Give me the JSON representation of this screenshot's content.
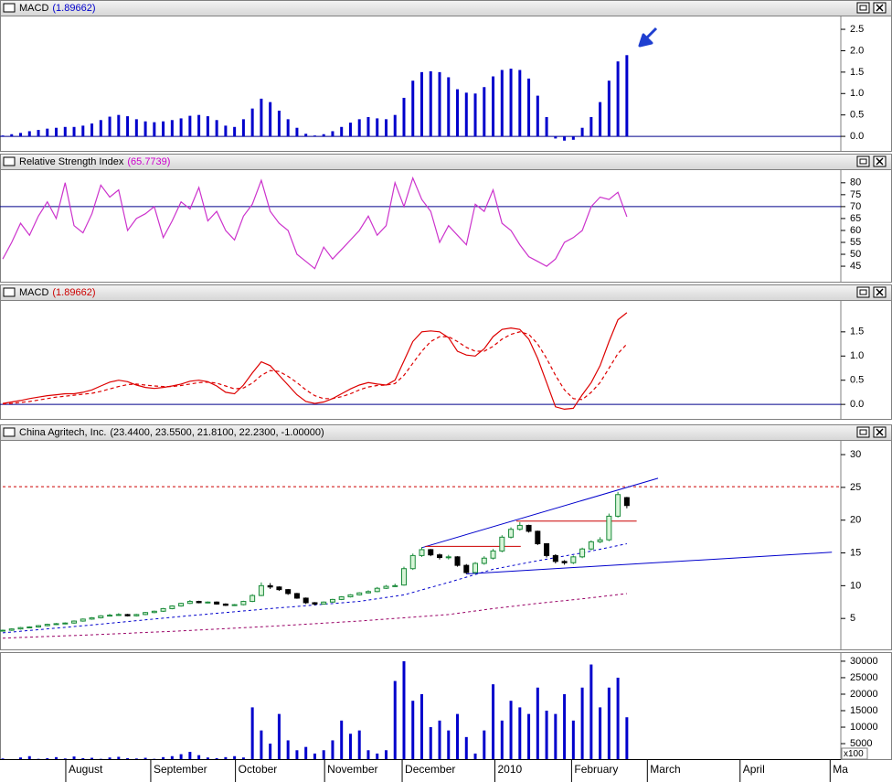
{
  "chart_data": [
    {
      "type": "bar",
      "title": "MACD",
      "header_value": "(1.89662)",
      "header_color": "#0000cc",
      "xlim": [
        0,
        94
      ],
      "ylim": [
        -0.34,
        2.8
      ],
      "yticks": [
        {
          "value": 0,
          "label": "0.0"
        },
        0.5,
        {
          "value": 1,
          "label": "1.0"
        },
        1.5,
        {
          "value": 2,
          "label": "2.0"
        },
        2.5
      ],
      "hline": 0,
      "hline_color": "#00008b",
      "series": [
        {
          "name": "MACD",
          "color": "#0000cc",
          "values": [
            0.02,
            0.05,
            0.08,
            0.12,
            0.15,
            0.18,
            0.2,
            0.22,
            0.22,
            0.25,
            0.3,
            0.38,
            0.46,
            0.5,
            0.47,
            0.4,
            0.35,
            0.33,
            0.35,
            0.38,
            0.42,
            0.48,
            0.5,
            0.47,
            0.38,
            0.25,
            0.22,
            0.4,
            0.65,
            0.88,
            0.8,
            0.6,
            0.4,
            0.2,
            0.06,
            0.02,
            0.05,
            0.12,
            0.22,
            0.32,
            0.4,
            0.45,
            0.42,
            0.4,
            0.5,
            0.9,
            1.3,
            1.5,
            1.52,
            1.5,
            1.38,
            1.1,
            1.02,
            1.0,
            1.15,
            1.4,
            1.55,
            1.58,
            1.55,
            1.35,
            0.95,
            0.45,
            -0.05,
            -0.1,
            -0.08,
            0.2,
            0.45,
            0.8,
            1.3,
            1.75,
            1.89662
          ]
        }
      ]
    },
    {
      "type": "line",
      "title": "Relative Strength Index",
      "header_value": "(65.7739)",
      "header_color": "#cc00cc",
      "xlim": [
        0,
        94
      ],
      "ylim": [
        38.5,
        85.3
      ],
      "yticks": [
        45,
        50,
        55,
        60,
        65,
        70,
        75,
        80
      ],
      "hline": 70,
      "hline_color": "#00008b",
      "series": [
        {
          "name": "RSI",
          "color": "#cc33cc",
          "values": [
            48,
            55,
            63,
            58,
            66,
            72,
            65,
            80,
            62,
            59,
            67,
            79,
            74,
            77,
            60,
            65,
            67,
            70,
            57,
            64,
            72,
            69,
            78,
            64,
            68,
            60,
            56,
            66,
            71,
            81,
            68,
            63,
            60,
            50,
            47,
            44,
            53,
            48,
            52,
            56,
            60,
            66,
            58,
            62,
            80,
            70,
            82,
            73,
            68,
            55,
            62,
            58,
            54,
            71,
            68,
            77,
            63,
            60,
            54,
            49,
            47,
            45,
            48,
            55,
            57,
            60,
            70,
            74,
            73,
            76,
            65.7739
          ]
        }
      ]
    },
    {
      "type": "line",
      "title": "MACD",
      "header_value": "(1.89662)",
      "header_color": "#cc0000",
      "xlim": [
        0,
        94
      ],
      "ylim": [
        -0.3,
        2.14
      ],
      "yticks": [
        {
          "value": 0,
          "label": "0.0"
        },
        0.5,
        {
          "value": 1,
          "label": "1.0"
        },
        1.5
      ],
      "hline": 0,
      "hline_color": "#00008b",
      "series": [
        {
          "name": "MACD",
          "color": "#dd0000",
          "values": [
            0.02,
            0.05,
            0.08,
            0.12,
            0.15,
            0.18,
            0.2,
            0.22,
            0.22,
            0.25,
            0.3,
            0.38,
            0.46,
            0.5,
            0.47,
            0.4,
            0.35,
            0.33,
            0.35,
            0.38,
            0.42,
            0.48,
            0.5,
            0.47,
            0.38,
            0.25,
            0.22,
            0.4,
            0.65,
            0.88,
            0.8,
            0.6,
            0.4,
            0.2,
            0.06,
            0.02,
            0.05,
            0.12,
            0.22,
            0.32,
            0.4,
            0.45,
            0.42,
            0.4,
            0.5,
            0.9,
            1.3,
            1.5,
            1.52,
            1.5,
            1.38,
            1.1,
            1.02,
            1.0,
            1.15,
            1.4,
            1.55,
            1.58,
            1.55,
            1.35,
            0.95,
            0.45,
            -0.05,
            -0.1,
            -0.08,
            0.2,
            0.45,
            0.8,
            1.3,
            1.75,
            1.89662
          ]
        },
        {
          "name": "Signal",
          "color": "#dd0000",
          "dash": "4,3",
          "values": [
            0.01,
            0.02,
            0.04,
            0.06,
            0.09,
            0.12,
            0.15,
            0.17,
            0.19,
            0.21,
            0.23,
            0.27,
            0.32,
            0.37,
            0.41,
            0.42,
            0.4,
            0.38,
            0.37,
            0.37,
            0.39,
            0.42,
            0.45,
            0.46,
            0.44,
            0.38,
            0.32,
            0.34,
            0.44,
            0.6,
            0.7,
            0.68,
            0.58,
            0.45,
            0.3,
            0.18,
            0.12,
            0.12,
            0.16,
            0.22,
            0.3,
            0.36,
            0.39,
            0.4,
            0.43,
            0.6,
            0.85,
            1.1,
            1.3,
            1.4,
            1.4,
            1.3,
            1.18,
            1.1,
            1.1,
            1.2,
            1.35,
            1.45,
            1.5,
            1.45,
            1.25,
            0.95,
            0.6,
            0.3,
            0.12,
            0.1,
            0.25,
            0.45,
            0.75,
            1.05,
            1.25
          ]
        }
      ]
    },
    {
      "type": "candlestick",
      "title": "China Agritech, Inc.",
      "header_value": "(23.4400, 23.5500, 21.8100, 22.2300, -1.00000)",
      "header_color": "#000000",
      "xlim": [
        0,
        94
      ],
      "ylim": [
        0.28,
        32.1
      ],
      "yticks": [
        5,
        10,
        15,
        20,
        25,
        30
      ],
      "colors": {
        "up": "#1a8a3a",
        "up_fill": "#d8f5d8",
        "down": "#000000"
      },
      "open": [
        3.1,
        3.2,
        3.4,
        3.6,
        3.7,
        3.9,
        4.1,
        4.2,
        4.3,
        4.6,
        4.9,
        5.1,
        5.4,
        5.5,
        5.6,
        5.4,
        5.6,
        5.9,
        6.1,
        6.5,
        6.9,
        7.3,
        7.6,
        7.4,
        7.5,
        7.2,
        7.0,
        7.1,
        7.6,
        8.5,
        10.0,
        9.8,
        9.4,
        8.8,
        8.1,
        7.4,
        7.2,
        7.5,
        7.9,
        8.3,
        8.6,
        8.9,
        9.1,
        9.6,
        9.9,
        10.1,
        12.6,
        14.6,
        15.5,
        14.7,
        14.3,
        14.4,
        13.1,
        12.0,
        13.4,
        14.2,
        15.3,
        17.4,
        18.6,
        19.2,
        18.3,
        16.4,
        14.6,
        13.7,
        13.5,
        14.4,
        15.6,
        16.7,
        17.0,
        20.6,
        23.44
      ],
      "high": [
        3.3,
        3.5,
        3.7,
        3.8,
        4.0,
        4.2,
        4.3,
        4.4,
        4.7,
        5.0,
        5.2,
        5.5,
        5.7,
        5.8,
        5.7,
        5.7,
        6.0,
        6.2,
        6.6,
        7.0,
        7.4,
        7.8,
        7.7,
        7.6,
        7.6,
        7.3,
        7.2,
        7.7,
        8.7,
        10.5,
        10.4,
        9.9,
        9.5,
        8.9,
        8.2,
        7.5,
        7.6,
        8.0,
        8.4,
        8.7,
        9.0,
        9.3,
        9.8,
        10.1,
        10.3,
        12.9,
        14.9,
        15.9,
        15.6,
        14.9,
        14.7,
        14.5,
        13.3,
        13.6,
        14.5,
        15.6,
        17.7,
        18.9,
        19.7,
        19.3,
        18.4,
        16.5,
        14.8,
        13.9,
        14.6,
        15.8,
        16.9,
        17.4,
        21.0,
        24.3,
        23.55
      ],
      "low": [
        3.0,
        3.1,
        3.3,
        3.5,
        3.6,
        3.8,
        4.0,
        4.1,
        4.2,
        4.5,
        4.8,
        5.0,
        5.3,
        5.4,
        5.3,
        5.3,
        5.5,
        5.8,
        6.0,
        6.4,
        6.8,
        7.2,
        7.3,
        7.3,
        7.1,
        6.9,
        6.9,
        7.0,
        7.5,
        8.4,
        9.5,
        9.2,
        8.6,
        8.0,
        7.2,
        7.0,
        7.1,
        7.4,
        7.8,
        8.2,
        8.5,
        8.8,
        9.0,
        9.5,
        9.8,
        10.0,
        12.4,
        14.4,
        14.5,
        14.0,
        14.0,
        12.9,
        11.8,
        11.8,
        13.2,
        14.0,
        15.1,
        17.2,
        18.4,
        18.1,
        16.2,
        14.3,
        13.4,
        13.2,
        13.3,
        14.2,
        15.4,
        16.5,
        16.8,
        20.4,
        21.81
      ],
      "close": [
        3.2,
        3.4,
        3.6,
        3.7,
        3.9,
        4.1,
        4.2,
        4.3,
        4.6,
        4.9,
        5.1,
        5.4,
        5.5,
        5.6,
        5.4,
        5.6,
        5.9,
        6.1,
        6.5,
        6.9,
        7.3,
        7.6,
        7.4,
        7.5,
        7.2,
        7.0,
        7.1,
        7.6,
        8.5,
        10.0,
        9.8,
        9.4,
        8.8,
        8.1,
        7.4,
        7.2,
        7.5,
        7.9,
        8.3,
        8.6,
        8.9,
        9.1,
        9.6,
        9.9,
        10.0,
        12.6,
        14.6,
        15.5,
        14.7,
        14.3,
        14.4,
        13.1,
        12.0,
        13.4,
        14.2,
        15.3,
        17.4,
        18.6,
        19.2,
        18.3,
        16.4,
        14.6,
        13.7,
        13.5,
        14.4,
        15.6,
        16.7,
        17.0,
        20.6,
        23.9,
        22.23
      ],
      "overlays": [
        {
          "color": "#0000cc",
          "dash": "3,3",
          "x": [
            0,
            10,
            20,
            30,
            40,
            45,
            50,
            55,
            60,
            65,
            70
          ],
          "values": [
            2.8,
            4.0,
            5.3,
            6.5,
            7.6,
            8.6,
            10.5,
            12.5,
            13.8,
            15.0,
            16.4
          ]
        },
        {
          "color": "#990066",
          "dash": "3,3",
          "x": [
            0,
            10,
            20,
            30,
            40,
            50,
            55,
            60,
            65,
            70
          ],
          "values": [
            2.0,
            2.5,
            3.1,
            3.8,
            4.6,
            5.6,
            6.5,
            7.3,
            8.0,
            8.8
          ]
        }
      ],
      "trendlines": [
        {
          "color": "#cc0000",
          "dash": "3,3",
          "x": [
            0,
            94
          ],
          "y": [
            25.1,
            25.1
          ]
        },
        {
          "color": "#0000cc",
          "x": [
            47,
            73.5
          ],
          "y": [
            15.8,
            26.4
          ]
        },
        {
          "color": "#0000cc",
          "x": [
            52,
            93
          ],
          "y": [
            11.8,
            15.1
          ]
        },
        {
          "color": "#cc0000",
          "x": [
            47.4,
            58.1
          ],
          "y": [
            16.0,
            16.0
          ]
        },
        {
          "color": "#cc0000",
          "x": [
            57.6,
            71.1
          ],
          "y": [
            19.86,
            19.86
          ]
        }
      ]
    },
    {
      "type": "bar",
      "xlim": [
        0,
        94
      ],
      "ylim": [
        300,
        32200
      ],
      "yticks": [
        5000,
        10000,
        15000,
        20000,
        25000,
        30000
      ],
      "unit_label": "x100",
      "xticks": [
        {
          "value": 7.07,
          "label": "August"
        },
        {
          "value": 16.6,
          "label": "September"
        },
        {
          "value": 26.1,
          "label": "October"
        },
        {
          "value": 36.1,
          "label": "November"
        },
        {
          "value": 44.8,
          "label": "December"
        },
        {
          "value": 55.2,
          "label": "2010"
        },
        {
          "value": 63.8,
          "label": "February"
        },
        {
          "value": 72.3,
          "label": "March"
        },
        {
          "value": 82.7,
          "label": "April"
        },
        {
          "value": 92.8,
          "label": "Ma"
        }
      ],
      "series": [
        {
          "name": "Volume",
          "color": "#0000cc",
          "values": [
            500,
            300,
            800,
            1200,
            400,
            600,
            900,
            500,
            1100,
            600,
            700,
            400,
            800,
            1000,
            600,
            500,
            700,
            400,
            900,
            1200,
            1800,
            2500,
            1500,
            800,
            600,
            900,
            1200,
            800,
            16000,
            9000,
            5000,
            14000,
            6000,
            3000,
            4000,
            2000,
            3000,
            6000,
            12000,
            8000,
            9000,
            3000,
            2000,
            3000,
            24000,
            30000,
            18000,
            20000,
            10000,
            12000,
            9000,
            14000,
            7000,
            2000,
            9000,
            23000,
            12000,
            18000,
            16000,
            14000,
            22000,
            15000,
            14000,
            20000,
            12000,
            22000,
            29000,
            16000,
            22000,
            25000,
            13000
          ]
        }
      ]
    }
  ]
}
